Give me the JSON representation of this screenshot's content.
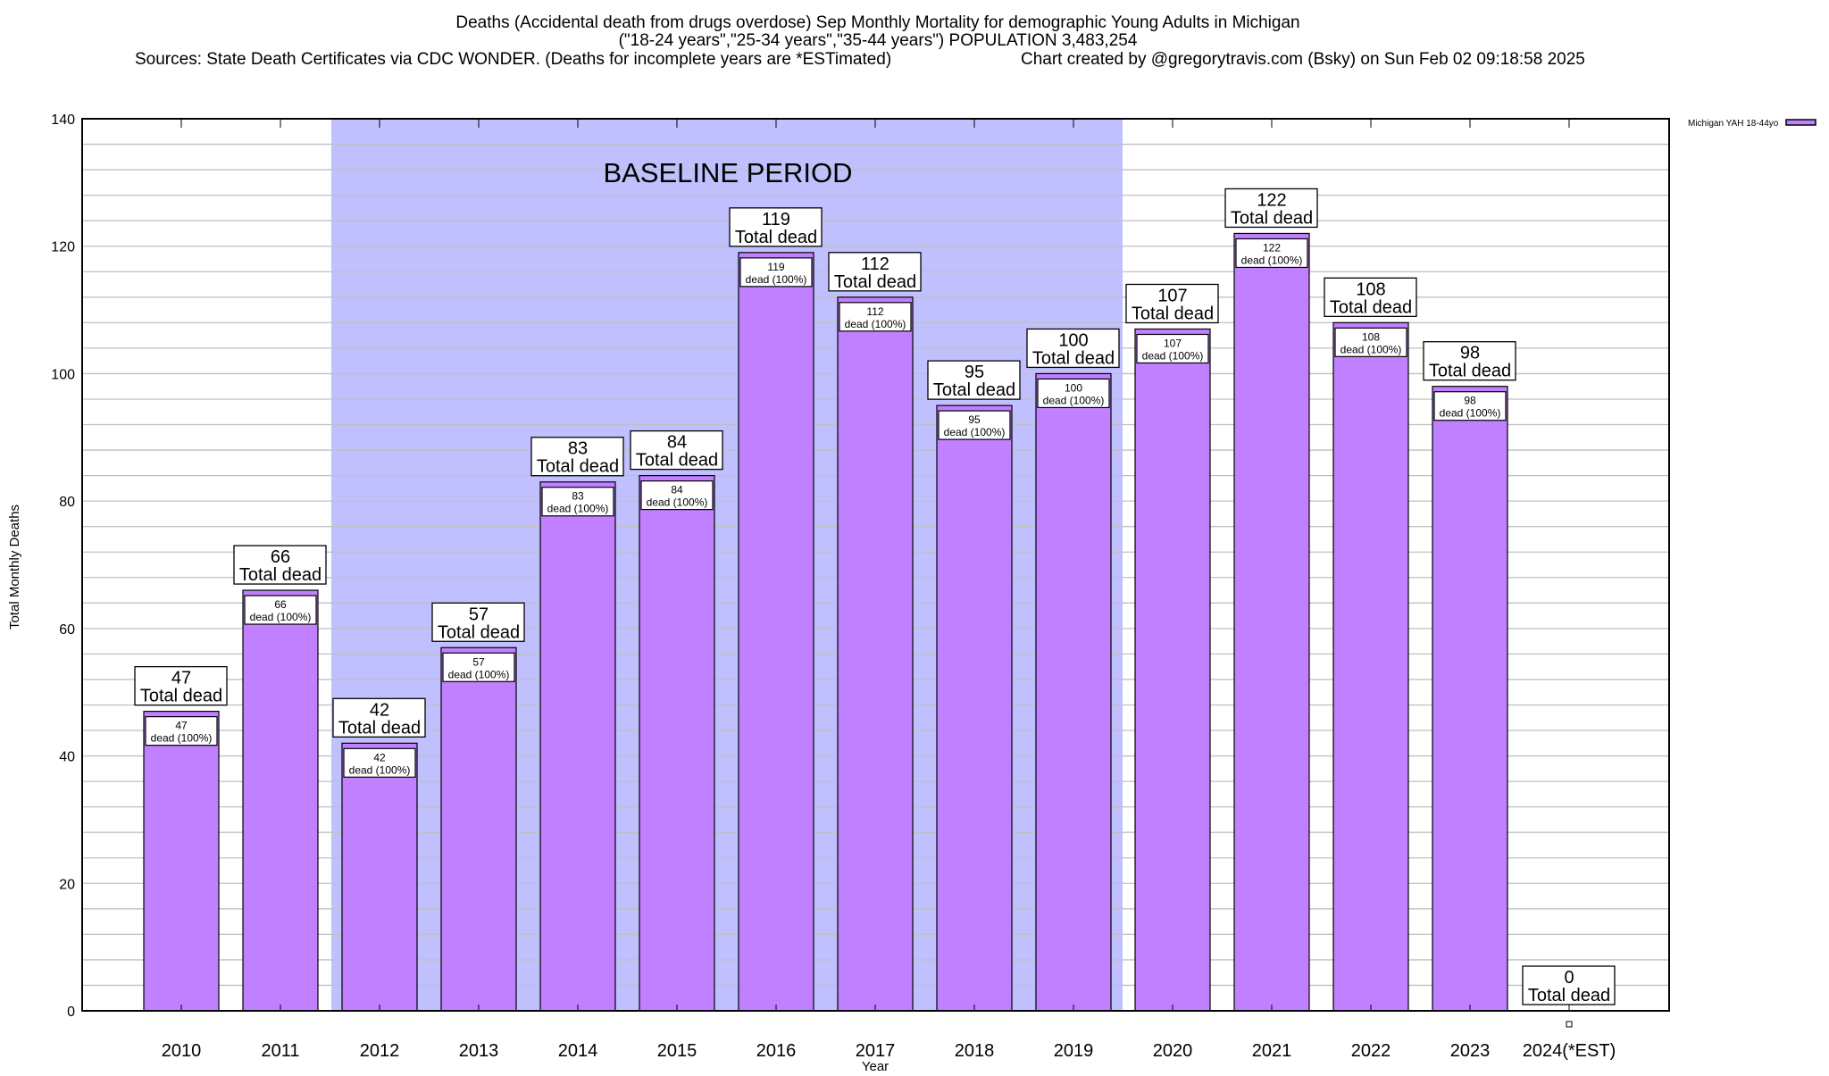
{
  "chart_data": {
    "type": "bar",
    "title_lines": [
      "Deaths (Accidental death from drugs overdose) Sep Monthly Mortality for demographic Young Adults in Michigan",
      "(\"18-24 years\",\"25-34 years\",\"35-44 years\") POPULATION 3,483,254",
      "Sources: State Death Certificates via CDC WONDER. (Deaths for incomplete years are *ESTimated)",
      "Chart created by @gregorytravis.com (Bsky) on Sun Feb 02 09:18:58 2025"
    ],
    "xlabel": "Year",
    "ylabel": "Total Monthly Deaths",
    "ylim": [
      0,
      140
    ],
    "yticks": [
      0,
      20,
      40,
      60,
      80,
      100,
      120,
      140
    ],
    "grid": true,
    "legend": {
      "position": "top-right",
      "label": "Michigan YAH 18-44yo"
    },
    "categories": [
      "2010",
      "2011",
      "2012",
      "2013",
      "2014",
      "2015",
      "2016",
      "2017",
      "2018",
      "2019",
      "2020",
      "2021",
      "2022",
      "2023",
      "2024(*EST)"
    ],
    "series": [
      {
        "name": "Michigan YAH 18-44yo",
        "values": [
          47,
          66,
          42,
          57,
          83,
          84,
          119,
          112,
          95,
          100,
          107,
          122,
          108,
          98,
          0
        ]
      }
    ],
    "total_label": "Total dead",
    "inner_label": "dead (100%)",
    "annotation": {
      "text": "BASELINE PERIOD",
      "start": "2012",
      "end": "2019"
    },
    "colors": {
      "bar": "#c080ff",
      "baseline": "#c0c0ff",
      "grid": "#c0c0c0"
    }
  }
}
